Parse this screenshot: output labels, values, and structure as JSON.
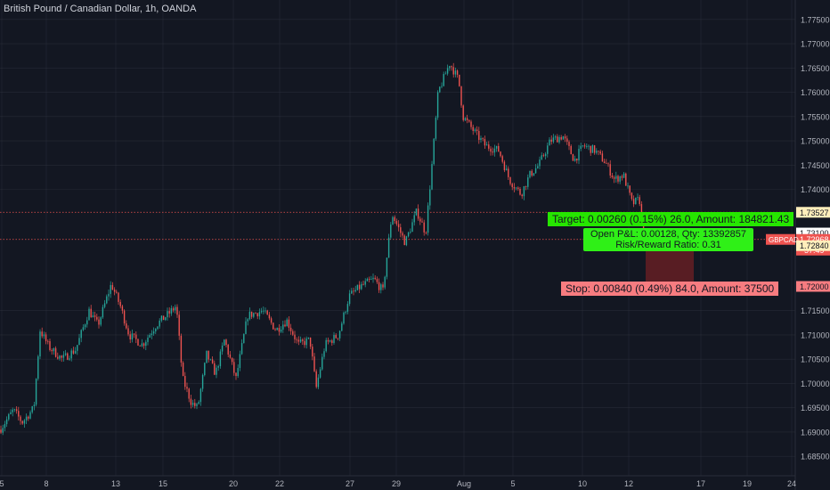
{
  "header": {
    "title": "British Pound / Canadian Dollar, 1h, OANDA"
  },
  "colors": {
    "background": "#131722",
    "grid": "#363a45",
    "text": "#b2b5be",
    "bull": "#26a69a",
    "bear": "#ef5350",
    "target_box": "#26e600",
    "stop_box": "#f77c80",
    "pnl_box": "#2ff017",
    "risk_zone": "#6a1f24"
  },
  "chart_data": {
    "type": "candlestick",
    "symbol": "GBPCAD",
    "timeframe": "1h",
    "ylim": [
      1.681,
      1.779
    ],
    "y_ticks": [
      "1.77500",
      "1.77000",
      "1.76500",
      "1.76000",
      "1.75500",
      "1.75000",
      "1.74500",
      "1.74000",
      "1.71500",
      "1.71000",
      "1.70500",
      "1.70000",
      "1.69500",
      "1.69000",
      "1.68500"
    ],
    "x_ticks": [
      {
        "label": "5",
        "pos": 2
      },
      {
        "label": "8",
        "pos": 52
      },
      {
        "label": "13",
        "pos": 130
      },
      {
        "label": "15",
        "pos": 183
      },
      {
        "label": "20",
        "pos": 262
      },
      {
        "label": "22",
        "pos": 314
      },
      {
        "label": "27",
        "pos": 393
      },
      {
        "label": "29",
        "pos": 445
      },
      {
        "label": "Aug",
        "pos": 521
      },
      {
        "label": "5",
        "pos": 576
      },
      {
        "label": "10",
        "pos": 654
      },
      {
        "label": "12",
        "pos": 706
      },
      {
        "label": "17",
        "pos": 787
      },
      {
        "label": "19",
        "pos": 839
      },
      {
        "label": "24",
        "pos": 889
      }
    ],
    "price_path": [
      [
        0,
        1.6905
      ],
      [
        15,
        1.6945
      ],
      [
        25,
        1.692
      ],
      [
        38,
        1.695
      ],
      [
        45,
        1.711
      ],
      [
        55,
        1.7075
      ],
      [
        70,
        1.705
      ],
      [
        85,
        1.707
      ],
      [
        100,
        1.715
      ],
      [
        110,
        1.712
      ],
      [
        125,
        1.7205
      ],
      [
        135,
        1.716
      ],
      [
        145,
        1.71
      ],
      [
        160,
        1.708
      ],
      [
        175,
        1.712
      ],
      [
        190,
        1.7145
      ],
      [
        198,
        1.716
      ],
      [
        205,
        1.701
      ],
      [
        215,
        1.696
      ],
      [
        222,
        1.695
      ],
      [
        232,
        1.706
      ],
      [
        242,
        1.702
      ],
      [
        252,
        1.709
      ],
      [
        265,
        1.701
      ],
      [
        278,
        1.714
      ],
      [
        295,
        1.715
      ],
      [
        310,
        1.711
      ],
      [
        322,
        1.713
      ],
      [
        335,
        1.708
      ],
      [
        348,
        1.709
      ],
      [
        355,
        1.699
      ],
      [
        365,
        1.708
      ],
      [
        380,
        1.71
      ],
      [
        392,
        1.718
      ],
      [
        405,
        1.72
      ],
      [
        420,
        1.7215
      ],
      [
        430,
        1.719
      ],
      [
        440,
        1.735
      ],
      [
        455,
        1.729
      ],
      [
        468,
        1.7355
      ],
      [
        478,
        1.731
      ],
      [
        485,
        1.745
      ],
      [
        492,
        1.76
      ],
      [
        505,
        1.766
      ],
      [
        515,
        1.7625
      ],
      [
        520,
        1.755
      ],
      [
        532,
        1.752
      ],
      [
        545,
        1.749
      ],
      [
        560,
        1.748
      ],
      [
        572,
        1.742
      ],
      [
        585,
        1.739
      ],
      [
        595,
        1.743
      ],
      [
        605,
        1.745
      ],
      [
        618,
        1.75
      ],
      [
        632,
        1.751
      ],
      [
        645,
        1.746
      ],
      [
        655,
        1.749
      ],
      [
        668,
        1.748
      ],
      [
        680,
        1.7455
      ],
      [
        690,
        1.742
      ],
      [
        700,
        1.743
      ],
      [
        710,
        1.737
      ],
      [
        718,
        1.738
      ],
      [
        723,
        1.7295
      ]
    ],
    "price_lines": [
      {
        "price": 1.73527,
        "label": "1.73527",
        "style": "dotted"
      },
      {
        "price": 1.72968,
        "label": "1.72968",
        "style": "dotted"
      }
    ],
    "axis_price_labels": [
      {
        "price": 1.73527,
        "label": "1.73527",
        "type": "dotted-line"
      },
      {
        "price": 1.731,
        "label": "1.73100",
        "type": "target-level"
      },
      {
        "price": 1.72968,
        "label": "1.72968",
        "type": "current",
        "symbol": "GBPCAD",
        "countdown": "57:49"
      },
      {
        "price": 1.7284,
        "label": "1.72840",
        "type": "entry-level"
      },
      {
        "price": 1.72,
        "label": "1.72000",
        "type": "stop-level"
      }
    ],
    "position": {
      "side": "short",
      "entry": 1.7284,
      "target": 1.731,
      "stop": 1.72,
      "target_label": "Target: 0.00260 (0.15%) 26.0, Amount: 184821.43",
      "stop_label": "Stop: 0.00840 (0.49%) 84.0, Amount: 37500",
      "pnl_label": "Open P&L: 0.00128, Qty: 13392857",
      "rr_label": "Risk/Reward Ratio: 0.31"
    }
  }
}
